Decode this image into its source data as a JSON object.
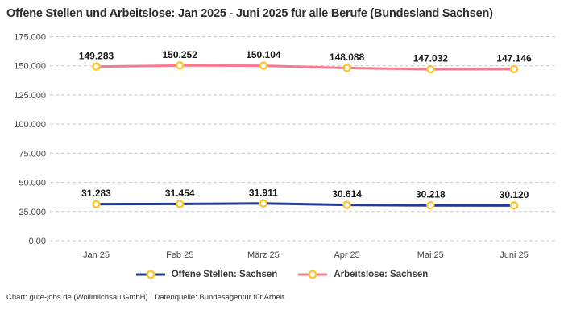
{
  "title": "Offene Stellen und Arbeitslose: Jan 2025 - Juni 2025 für alle Berufe (Bundesland Sachsen)",
  "footer": "Chart: gute-jobs.de (Wollmilchsau GmbH) | Datenquelle: Bundesagentur für Arbeit",
  "colors": {
    "offene_stellen": "#253a96",
    "arbeitslose": "#f77a91",
    "marker_ring": "#ffc531",
    "marker_fill": "#ffffff",
    "gridline": "#c9c9c9",
    "text": "#2e2e2e"
  },
  "chart_data": {
    "type": "line",
    "categories": [
      "Jan 25",
      "Feb 25",
      "März 25",
      "Apr 25",
      "Mai 25",
      "Juni 25"
    ],
    "series": [
      {
        "name": "Offene Stellen: Sachsen",
        "color_key": "offene_stellen",
        "values": [
          31283,
          31454,
          31911,
          30614,
          30218,
          30120
        ],
        "labels": [
          "31.283",
          "31.454",
          "31.911",
          "30.614",
          "30.218",
          "30.120"
        ]
      },
      {
        "name": "Arbeitslose: Sachsen",
        "color_key": "arbeitslose",
        "values": [
          149283,
          150252,
          150104,
          148088,
          147032,
          147146
        ],
        "labels": [
          "149.283",
          "150.252",
          "150.104",
          "148.088",
          "147.032",
          "147.146"
        ]
      }
    ],
    "ylim": [
      0,
      175000
    ],
    "ytick_step": 25000,
    "ytick_labels": [
      "0,00",
      "25.000",
      "50.000",
      "75.000",
      "100.000",
      "125.000",
      "150.000",
      "175.000"
    ],
    "grid": true,
    "grid_style": "dashed",
    "legend_position": "bottom"
  },
  "legend": {
    "items": [
      {
        "label": "Offene Stellen: Sachsen",
        "color_key": "offene_stellen"
      },
      {
        "label": "Arbeitslose: Sachsen",
        "color_key": "arbeitslose"
      }
    ]
  }
}
